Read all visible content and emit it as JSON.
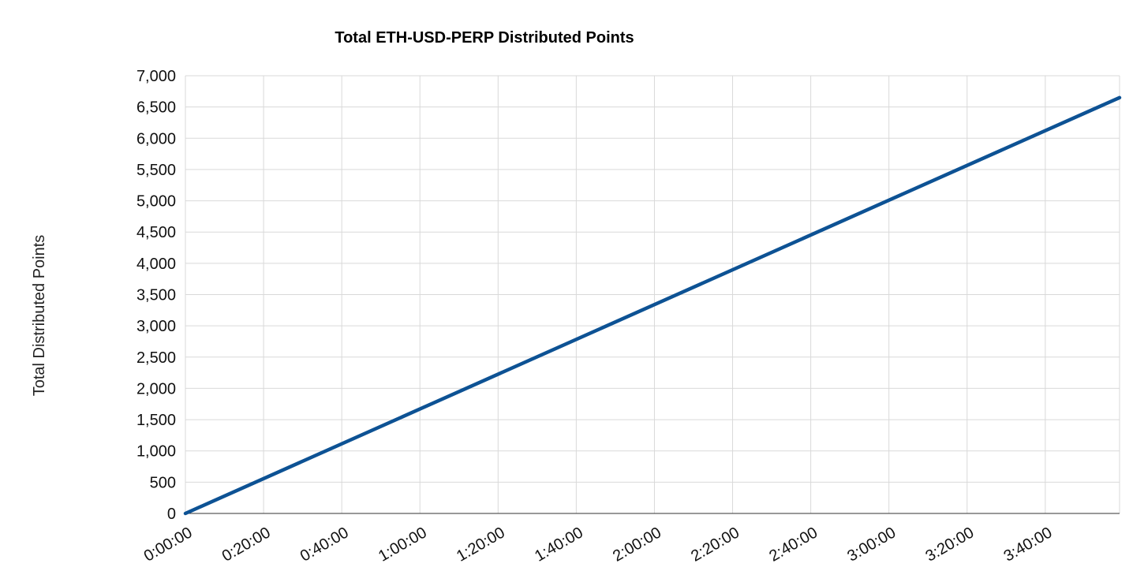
{
  "chart_data": {
    "type": "line",
    "title": "Total ETH-USD-PERP Distributed Points",
    "xlabel": "",
    "ylabel": "Total Distributed Points",
    "x_tick_labels": [
      "0:00:00",
      "0:20:00",
      "0:40:00",
      "1:00:00",
      "1:20:00",
      "1:40:00",
      "2:00:00",
      "2:20:00",
      "2:40:00",
      "3:00:00",
      "3:20:00",
      "3:40:00"
    ],
    "y_tick_labels": [
      "0",
      "500",
      "1,000",
      "1,500",
      "2,000",
      "2,500",
      "3,000",
      "3,500",
      "4,000",
      "4,500",
      "5,000",
      "5,500",
      "6,000",
      "6,500",
      "7,000"
    ],
    "xlim": [
      "0:00:00",
      "3:59:00"
    ],
    "ylim": [
      0,
      7000
    ],
    "grid": true,
    "legend": "none",
    "series": [
      {
        "color": "#0d5294",
        "x": [
          "0:00:00",
          "1:00:00",
          "2:00:00",
          "3:00:00",
          "3:59:00"
        ],
        "y": [
          0,
          1670,
          3340,
          5010,
          6650
        ]
      }
    ]
  }
}
